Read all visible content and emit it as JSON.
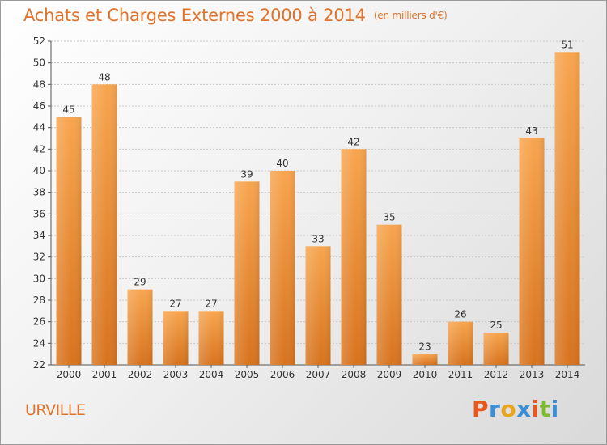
{
  "header": {
    "title": "Achats et Charges Externes 2000 à 2014",
    "unit": "(en milliers d'€)"
  },
  "footer": {
    "commune": "URVILLE",
    "logo_letters": [
      "P",
      "r",
      "o",
      "x",
      "i",
      "t",
      "i"
    ],
    "logo_colors": [
      "#e8571e",
      "#3a8fd8",
      "#e8a51e",
      "#3a8fd8",
      "#e8571e",
      "#7cbb2c",
      "#3a8fd8"
    ]
  },
  "chart_data": {
    "type": "bar",
    "categories": [
      "2000",
      "2001",
      "2002",
      "2003",
      "2004",
      "2005",
      "2006",
      "2007",
      "2008",
      "2009",
      "2010",
      "2011",
      "2012",
      "2013",
      "2014"
    ],
    "values": [
      45,
      48,
      29,
      27,
      27,
      39,
      40,
      33,
      42,
      35,
      23,
      26,
      25,
      43,
      51
    ],
    "ylim": [
      22,
      52
    ],
    "yticks": [
      22,
      24,
      26,
      28,
      30,
      32,
      34,
      36,
      38,
      40,
      42,
      44,
      46,
      48,
      50,
      52
    ],
    "grid": true,
    "bar_color_top": "#f7a54e",
    "bar_color_bottom": "#d7731e"
  }
}
